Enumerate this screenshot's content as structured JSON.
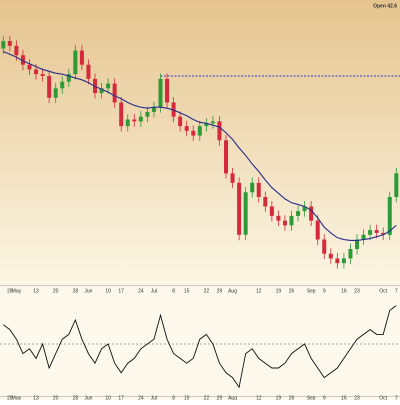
{
  "chart_data": {
    "type": "candlestick",
    "header": "Open 42.6",
    "categories": [
      null,
      "28",
      "May",
      null,
      null,
      "13",
      null,
      null,
      "20",
      null,
      null,
      "28",
      null,
      "Jun",
      null,
      null,
      "10",
      null,
      "17",
      null,
      null,
      "24",
      null,
      "Jul",
      null,
      null,
      "8",
      null,
      "15",
      null,
      null,
      "22",
      null,
      "29",
      null,
      "Aug",
      null,
      null,
      null,
      "12",
      null,
      null,
      "19",
      null,
      "26",
      null,
      null,
      "Sep",
      null,
      "9",
      null,
      null,
      "16",
      null,
      "23",
      null,
      null,
      null,
      "Oct",
      null,
      "7"
    ],
    "open": [
      47.0,
      47.55,
      47.2,
      46.5,
      45.8,
      45.45,
      45.1,
      44.96,
      43.35,
      44.05,
      44.54,
      45.1,
      46.85,
      45.8,
      44.75,
      43.7,
      44.05,
      44.4,
      43.0,
      41.25,
      41.74,
      41.6,
      41.95,
      42.3,
      42.65,
      44.75,
      43.0,
      41.95,
      41.25,
      40.9,
      40.55,
      41.25,
      41.46,
      41.6,
      40.2,
      37.75,
      37.05,
      33.2,
      36.35,
      37.05,
      36.0,
      35.3,
      34.6,
      34.25,
      33.9,
      34.6,
      34.95,
      35.3,
      34.25,
      32.85,
      31.8,
      31.45,
      31.1,
      31.45,
      32.15,
      32.85,
      33.2,
      33.55,
      33.34,
      33.2,
      36.0
    ],
    "high": [
      47.95,
      47.95,
      47.6,
      46.9,
      46.2,
      45.85,
      45.5,
      45.36,
      44.45,
      44.94,
      45.5,
      47.25,
      47.25,
      46.2,
      45.15,
      44.45,
      44.8,
      44.8,
      43.4,
      42.14,
      42.14,
      42.35,
      42.7,
      43.05,
      45.15,
      45.15,
      43.4,
      42.35,
      41.65,
      41.3,
      41.65,
      41.86,
      42.0,
      42.0,
      40.6,
      38.15,
      37.45,
      36.75,
      37.45,
      37.45,
      36.4,
      35.7,
      35.0,
      34.65,
      35.0,
      35.35,
      35.7,
      35.7,
      34.65,
      33.25,
      32.2,
      31.85,
      31.85,
      32.55,
      33.25,
      33.6,
      33.95,
      33.95,
      33.74,
      36.4,
      38.15
    ],
    "low": [
      46.6,
      46.8,
      46.1,
      45.4,
      45.05,
      44.7,
      44.56,
      42.95,
      42.95,
      43.65,
      44.14,
      44.7,
      45.4,
      44.35,
      43.3,
      43.3,
      43.65,
      42.6,
      40.85,
      40.85,
      41.2,
      41.2,
      41.55,
      41.9,
      42.25,
      42.6,
      41.55,
      40.85,
      40.5,
      40.15,
      40.15,
      40.85,
      41.06,
      39.8,
      37.35,
      36.65,
      32.8,
      32.8,
      35.95,
      35.6,
      34.9,
      34.2,
      33.85,
      33.5,
      33.5,
      34.2,
      34.55,
      33.85,
      32.45,
      31.4,
      31.05,
      30.7,
      30.7,
      31.05,
      31.75,
      32.45,
      32.8,
      32.94,
      32.8,
      32.8,
      35.6
    ],
    "close": [
      47.55,
      47.2,
      46.5,
      45.8,
      45.45,
      45.1,
      44.96,
      43.35,
      44.05,
      44.54,
      45.1,
      46.85,
      45.8,
      44.75,
      43.7,
      44.05,
      44.4,
      43.0,
      41.25,
      41.74,
      41.6,
      41.95,
      42.3,
      42.65,
      44.75,
      43.0,
      41.95,
      41.25,
      40.9,
      40.55,
      41.25,
      41.46,
      41.6,
      40.2,
      37.75,
      37.05,
      33.2,
      36.35,
      37.05,
      36.0,
      35.3,
      34.6,
      34.25,
      33.9,
      34.6,
      34.95,
      35.3,
      34.25,
      32.85,
      31.8,
      31.45,
      31.1,
      31.45,
      32.15,
      32.85,
      33.2,
      33.55,
      33.34,
      33.2,
      36.0,
      37.75
    ],
    "up_color": "#2e9a36",
    "down_color": "#d42a3c",
    "ylim": [
      30,
      50
    ],
    "series": [
      {
        "color": "#2a2e8c",
        "values": [
          46.78,
          46.57,
          46.36,
          46.08,
          45.87,
          45.66,
          45.45,
          45.31,
          45.17,
          45.1,
          44.96,
          44.82,
          44.68,
          44.47,
          44.19,
          43.98,
          43.77,
          43.49,
          43.28,
          43.0,
          42.79,
          42.65,
          42.58,
          42.65,
          42.65,
          42.58,
          42.44,
          42.23,
          42.02,
          41.74,
          41.53,
          41.46,
          41.32,
          41.18,
          40.76,
          40.27,
          39.64,
          39.08,
          38.45,
          37.89,
          37.26,
          36.7,
          36.28,
          35.86,
          35.58,
          35.44,
          35.3,
          35.02,
          34.46,
          33.76,
          33.34,
          32.99,
          32.85,
          32.78,
          32.78,
          32.85,
          32.92,
          33.06,
          33.2,
          33.48,
          33.9
        ]
      }
    ],
    "reference_line": {
      "value": 44.96,
      "start": 24,
      "color": "#3a3ac8"
    },
    "oscillator": {
      "color": "#111111",
      "ylim": [
        0,
        100
      ],
      "midline": 50,
      "values": [
        70,
        65,
        55,
        40,
        45,
        35,
        50,
        25,
        40,
        55,
        60,
        75,
        55,
        40,
        30,
        45,
        50,
        30,
        20,
        30,
        35,
        45,
        50,
        55,
        80,
        55,
        40,
        35,
        30,
        35,
        55,
        60,
        50,
        30,
        20,
        15,
        5,
        40,
        45,
        35,
        30,
        25,
        25,
        30,
        40,
        45,
        50,
        35,
        25,
        15,
        20,
        25,
        35,
        45,
        55,
        60,
        65,
        60,
        60,
        85,
        90
      ]
    }
  }
}
